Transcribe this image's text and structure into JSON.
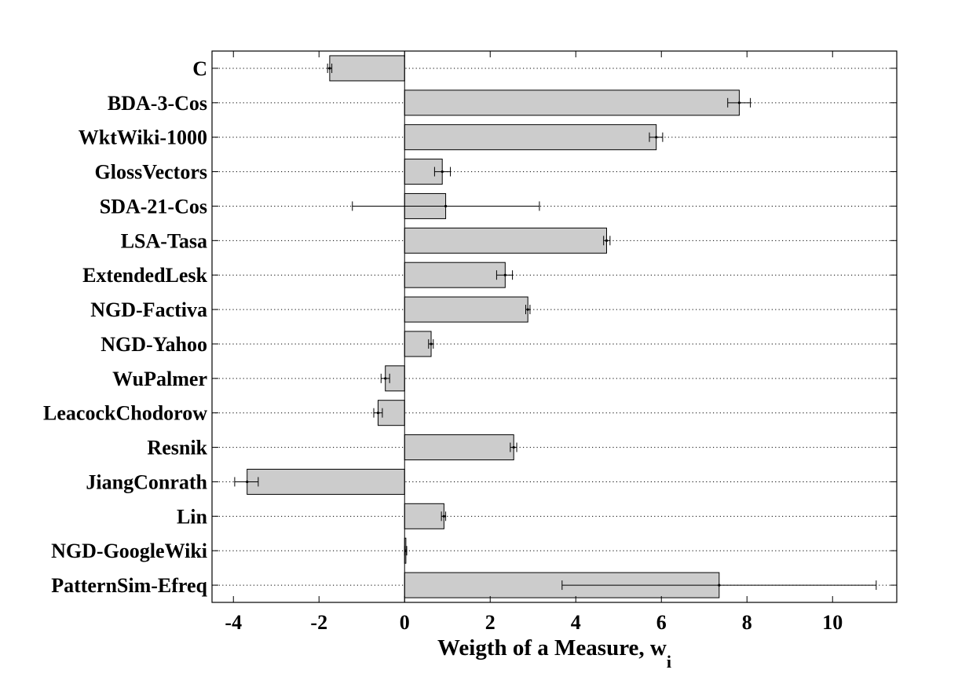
{
  "chart_data": {
    "type": "bar",
    "orientation": "horizontal",
    "categories": [
      "C",
      "BDA-3-Cos",
      "WktWiki-1000",
      "GlossVectors",
      "SDA-21-Cos",
      "LSA-Tasa",
      "ExtendedLesk",
      "NGD-Factiva",
      "NGD-Yahoo",
      "WuPalmer",
      "LeacockChodorow",
      "Resnik",
      "JiangConrath",
      "Lin",
      "NGD-GoogleWiki",
      "PatternSim-Efreq"
    ],
    "values": [
      -1.75,
      7.82,
      5.88,
      0.88,
      0.96,
      4.72,
      2.35,
      2.88,
      0.62,
      -0.45,
      -0.62,
      2.55,
      -3.68,
      0.92,
      0.03,
      7.35
    ],
    "error_low": [
      -1.8,
      7.55,
      5.72,
      0.7,
      -1.22,
      4.65,
      2.15,
      2.83,
      0.56,
      -0.55,
      -0.72,
      2.47,
      -3.97,
      0.86,
      0.0,
      3.68
    ],
    "error_high": [
      -1.7,
      8.08,
      6.03,
      1.07,
      3.15,
      4.8,
      2.52,
      2.93,
      0.67,
      -0.35,
      -0.52,
      2.62,
      -3.42,
      0.96,
      0.05,
      11.02
    ],
    "xlabel": "Weigth of a Measure, w",
    "xlabel_subscript": "i",
    "ylabel": "",
    "title": "",
    "xlim": [
      -4.5,
      11.5
    ],
    "xticks": [
      -4,
      -2,
      0,
      2,
      4,
      6,
      8,
      10
    ],
    "grid": "horizontal dotted",
    "legend": "none",
    "colors": {
      "bar_fill": "#cccccc",
      "bar_stroke": "#000000",
      "grid": "#000000"
    }
  }
}
